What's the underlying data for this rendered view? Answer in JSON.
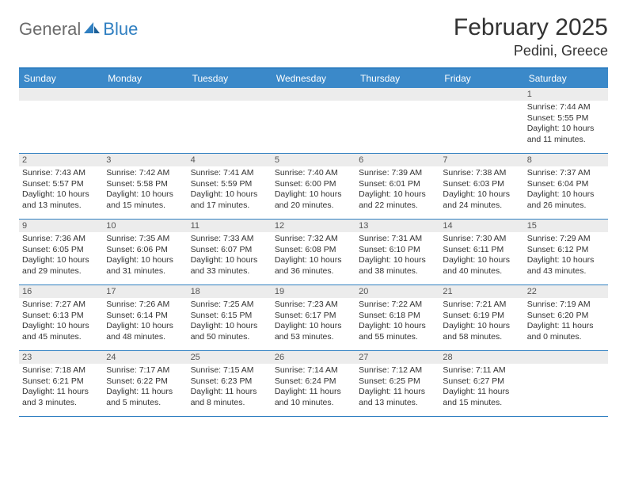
{
  "brand": {
    "part1": "General",
    "part2": "Blue"
  },
  "title": "February 2025",
  "location": "Pedini, Greece",
  "colors": {
    "header_bar": "#3b89c9",
    "accent": "#2f7fc1",
    "daynum_bg": "#ececec",
    "text": "#333333",
    "logo_gray": "#6b6b6b"
  },
  "day_names": [
    "Sunday",
    "Monday",
    "Tuesday",
    "Wednesday",
    "Thursday",
    "Friday",
    "Saturday"
  ],
  "weeks": [
    [
      {
        "n": "",
        "sr": "",
        "ss": "",
        "dl": ""
      },
      {
        "n": "",
        "sr": "",
        "ss": "",
        "dl": ""
      },
      {
        "n": "",
        "sr": "",
        "ss": "",
        "dl": ""
      },
      {
        "n": "",
        "sr": "",
        "ss": "",
        "dl": ""
      },
      {
        "n": "",
        "sr": "",
        "ss": "",
        "dl": ""
      },
      {
        "n": "",
        "sr": "",
        "ss": "",
        "dl": ""
      },
      {
        "n": "1",
        "sr": "Sunrise: 7:44 AM",
        "ss": "Sunset: 5:55 PM",
        "dl": "Daylight: 10 hours and 11 minutes."
      }
    ],
    [
      {
        "n": "2",
        "sr": "Sunrise: 7:43 AM",
        "ss": "Sunset: 5:57 PM",
        "dl": "Daylight: 10 hours and 13 minutes."
      },
      {
        "n": "3",
        "sr": "Sunrise: 7:42 AM",
        "ss": "Sunset: 5:58 PM",
        "dl": "Daylight: 10 hours and 15 minutes."
      },
      {
        "n": "4",
        "sr": "Sunrise: 7:41 AM",
        "ss": "Sunset: 5:59 PM",
        "dl": "Daylight: 10 hours and 17 minutes."
      },
      {
        "n": "5",
        "sr": "Sunrise: 7:40 AM",
        "ss": "Sunset: 6:00 PM",
        "dl": "Daylight: 10 hours and 20 minutes."
      },
      {
        "n": "6",
        "sr": "Sunrise: 7:39 AM",
        "ss": "Sunset: 6:01 PM",
        "dl": "Daylight: 10 hours and 22 minutes."
      },
      {
        "n": "7",
        "sr": "Sunrise: 7:38 AM",
        "ss": "Sunset: 6:03 PM",
        "dl": "Daylight: 10 hours and 24 minutes."
      },
      {
        "n": "8",
        "sr": "Sunrise: 7:37 AM",
        "ss": "Sunset: 6:04 PM",
        "dl": "Daylight: 10 hours and 26 minutes."
      }
    ],
    [
      {
        "n": "9",
        "sr": "Sunrise: 7:36 AM",
        "ss": "Sunset: 6:05 PM",
        "dl": "Daylight: 10 hours and 29 minutes."
      },
      {
        "n": "10",
        "sr": "Sunrise: 7:35 AM",
        "ss": "Sunset: 6:06 PM",
        "dl": "Daylight: 10 hours and 31 minutes."
      },
      {
        "n": "11",
        "sr": "Sunrise: 7:33 AM",
        "ss": "Sunset: 6:07 PM",
        "dl": "Daylight: 10 hours and 33 minutes."
      },
      {
        "n": "12",
        "sr": "Sunrise: 7:32 AM",
        "ss": "Sunset: 6:08 PM",
        "dl": "Daylight: 10 hours and 36 minutes."
      },
      {
        "n": "13",
        "sr": "Sunrise: 7:31 AM",
        "ss": "Sunset: 6:10 PM",
        "dl": "Daylight: 10 hours and 38 minutes."
      },
      {
        "n": "14",
        "sr": "Sunrise: 7:30 AM",
        "ss": "Sunset: 6:11 PM",
        "dl": "Daylight: 10 hours and 40 minutes."
      },
      {
        "n": "15",
        "sr": "Sunrise: 7:29 AM",
        "ss": "Sunset: 6:12 PM",
        "dl": "Daylight: 10 hours and 43 minutes."
      }
    ],
    [
      {
        "n": "16",
        "sr": "Sunrise: 7:27 AM",
        "ss": "Sunset: 6:13 PM",
        "dl": "Daylight: 10 hours and 45 minutes."
      },
      {
        "n": "17",
        "sr": "Sunrise: 7:26 AM",
        "ss": "Sunset: 6:14 PM",
        "dl": "Daylight: 10 hours and 48 minutes."
      },
      {
        "n": "18",
        "sr": "Sunrise: 7:25 AM",
        "ss": "Sunset: 6:15 PM",
        "dl": "Daylight: 10 hours and 50 minutes."
      },
      {
        "n": "19",
        "sr": "Sunrise: 7:23 AM",
        "ss": "Sunset: 6:17 PM",
        "dl": "Daylight: 10 hours and 53 minutes."
      },
      {
        "n": "20",
        "sr": "Sunrise: 7:22 AM",
        "ss": "Sunset: 6:18 PM",
        "dl": "Daylight: 10 hours and 55 minutes."
      },
      {
        "n": "21",
        "sr": "Sunrise: 7:21 AM",
        "ss": "Sunset: 6:19 PM",
        "dl": "Daylight: 10 hours and 58 minutes."
      },
      {
        "n": "22",
        "sr": "Sunrise: 7:19 AM",
        "ss": "Sunset: 6:20 PM",
        "dl": "Daylight: 11 hours and 0 minutes."
      }
    ],
    [
      {
        "n": "23",
        "sr": "Sunrise: 7:18 AM",
        "ss": "Sunset: 6:21 PM",
        "dl": "Daylight: 11 hours and 3 minutes."
      },
      {
        "n": "24",
        "sr": "Sunrise: 7:17 AM",
        "ss": "Sunset: 6:22 PM",
        "dl": "Daylight: 11 hours and 5 minutes."
      },
      {
        "n": "25",
        "sr": "Sunrise: 7:15 AM",
        "ss": "Sunset: 6:23 PM",
        "dl": "Daylight: 11 hours and 8 minutes."
      },
      {
        "n": "26",
        "sr": "Sunrise: 7:14 AM",
        "ss": "Sunset: 6:24 PM",
        "dl": "Daylight: 11 hours and 10 minutes."
      },
      {
        "n": "27",
        "sr": "Sunrise: 7:12 AM",
        "ss": "Sunset: 6:25 PM",
        "dl": "Daylight: 11 hours and 13 minutes."
      },
      {
        "n": "28",
        "sr": "Sunrise: 7:11 AM",
        "ss": "Sunset: 6:27 PM",
        "dl": "Daylight: 11 hours and 15 minutes."
      },
      {
        "n": "",
        "sr": "",
        "ss": "",
        "dl": ""
      }
    ]
  ]
}
